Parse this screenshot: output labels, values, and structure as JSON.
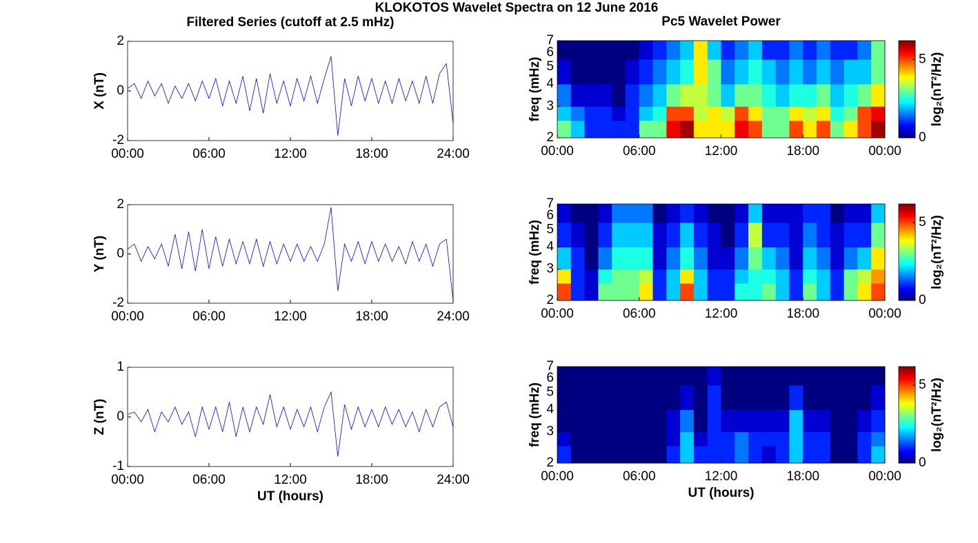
{
  "title": "KLOKOTOS Wavelet Spectra on 12 June 2016",
  "chart_data": [
    {
      "type": "line",
      "title": "Filtered Series (cutoff at 2.5 mHz)",
      "ylabel": "X (nT)",
      "color": "#0000ff",
      "x": [
        0,
        0.5,
        1,
        1.5,
        2,
        2.5,
        3,
        3.5,
        4,
        4.5,
        5,
        5.5,
        6,
        6.5,
        7,
        7.5,
        8,
        8.5,
        9,
        9.5,
        10,
        10.5,
        11,
        11.5,
        12,
        12.5,
        13,
        13.5,
        14,
        14.5,
        15,
        15.5,
        16,
        16.5,
        17,
        17.5,
        18,
        18.5,
        19,
        19.5,
        20,
        20.5,
        21,
        21.5,
        22,
        22.5,
        23,
        23.5,
        24
      ],
      "values": [
        0.1,
        0.3,
        -0.3,
        0.4,
        -0.2,
        0.3,
        -0.5,
        0.2,
        -0.3,
        0.3,
        -0.4,
        0.4,
        -0.3,
        0.5,
        -0.6,
        0.4,
        -0.5,
        0.6,
        -0.8,
        0.5,
        -0.9,
        0.7,
        -0.5,
        0.4,
        -0.6,
        0.5,
        -0.4,
        0.6,
        -0.5,
        0.5,
        1.4,
        -1.8,
        0.5,
        -0.6,
        0.6,
        -0.4,
        0.5,
        -0.5,
        0.4,
        -0.5,
        0.5,
        -0.4,
        0.4,
        -0.5,
        0.6,
        -0.5,
        0.7,
        1.1,
        -1.3
      ],
      "xlim": [
        0,
        24
      ],
      "xticks": [
        {
          "value": 0,
          "label": "00:00"
        },
        {
          "value": 6,
          "label": "06:00"
        },
        {
          "value": 12,
          "label": "12:00"
        },
        {
          "value": 18,
          "label": "18:00"
        },
        {
          "value": 24,
          "label": "24:00"
        }
      ],
      "ylim": [
        -2,
        2
      ],
      "yticks": [
        -2,
        0,
        2
      ]
    },
    {
      "type": "line",
      "ylabel": "Y (nT)",
      "color": "#0000ff",
      "x": [
        0,
        0.5,
        1,
        1.5,
        2,
        2.5,
        3,
        3.5,
        4,
        4.5,
        5,
        5.5,
        6,
        6.5,
        7,
        7.5,
        8,
        8.5,
        9,
        9.5,
        10,
        10.5,
        11,
        11.5,
        12,
        12.5,
        13,
        13.5,
        14,
        14.5,
        15,
        15.5,
        16,
        16.5,
        17,
        17.5,
        18,
        18.5,
        19,
        19.5,
        20,
        20.5,
        21,
        21.5,
        22,
        22.5,
        23,
        23.5,
        24
      ],
      "values": [
        0.2,
        0.4,
        -0.3,
        0.3,
        -0.2,
        0.4,
        -0.5,
        0.8,
        -0.6,
        0.9,
        -0.7,
        1.0,
        -0.6,
        0.7,
        -0.5,
        0.6,
        -0.4,
        0.5,
        -0.4,
        0.6,
        -0.5,
        0.5,
        -0.4,
        0.4,
        -0.3,
        0.4,
        -0.3,
        0.3,
        -0.3,
        0.4,
        1.9,
        -1.5,
        0.4,
        -0.3,
        0.5,
        -0.4,
        0.5,
        -0.3,
        0.4,
        -0.3,
        0.3,
        -0.4,
        0.5,
        -0.3,
        0.4,
        -0.5,
        0.4,
        0.6,
        -1.9
      ],
      "xlim": [
        0,
        24
      ],
      "xticks": [
        {
          "value": 0,
          "label": "00:00"
        },
        {
          "value": 6,
          "label": "06:00"
        },
        {
          "value": 12,
          "label": "12:00"
        },
        {
          "value": 18,
          "label": "18:00"
        },
        {
          "value": 24,
          "label": "24:00"
        }
      ],
      "ylim": [
        -2,
        2
      ],
      "yticks": [
        -2,
        0,
        2
      ]
    },
    {
      "type": "line",
      "ylabel": "Z (nT)",
      "xlabel": "UT (hours)",
      "color": "#0000ff",
      "x": [
        0,
        0.5,
        1,
        1.5,
        2,
        2.5,
        3,
        3.5,
        4,
        4.5,
        5,
        5.5,
        6,
        6.5,
        7,
        7.5,
        8,
        8.5,
        9,
        9.5,
        10,
        10.5,
        11,
        11.5,
        12,
        12.5,
        13,
        13.5,
        14,
        14.5,
        15,
        15.5,
        16,
        16.5,
        17,
        17.5,
        18,
        18.5,
        19,
        19.5,
        20,
        20.5,
        21,
        21.5,
        22,
        22.5,
        23,
        23.5,
        24
      ],
      "values": [
        0.05,
        0.1,
        -0.1,
        0.15,
        -0.3,
        0.1,
        -0.1,
        0.2,
        -0.15,
        0.1,
        -0.4,
        0.2,
        -0.25,
        0.2,
        -0.3,
        0.3,
        -0.4,
        0.2,
        -0.3,
        0.2,
        -0.15,
        0.45,
        -0.2,
        0.2,
        -0.25,
        0.15,
        -0.2,
        0.2,
        -0.3,
        0.2,
        0.5,
        -0.8,
        0.25,
        -0.25,
        0.2,
        -0.2,
        0.15,
        -0.2,
        0.2,
        -0.15,
        0.15,
        -0.2,
        0.1,
        -0.3,
        0.15,
        -0.2,
        0.2,
        0.3,
        -0.2
      ],
      "xlim": [
        0,
        24
      ],
      "xticks": [
        {
          "value": 0,
          "label": "00:00"
        },
        {
          "value": 6,
          "label": "06:00"
        },
        {
          "value": 12,
          "label": "12:00"
        },
        {
          "value": 18,
          "label": "18:00"
        },
        {
          "value": 24,
          "label": "24:00"
        }
      ],
      "ylim": [
        -1,
        1
      ],
      "yticks": [
        -1,
        0,
        1
      ]
    },
    {
      "type": "heatmap",
      "title": "Pc5 Wavelet Power",
      "ylabel": "freq (mHz)",
      "colorbar_label": "log₂(nT²/Hz)",
      "colormap": "jet",
      "log_scale": "y",
      "xbins": [
        0,
        1,
        2,
        3,
        4,
        5,
        6,
        7,
        8,
        9,
        10,
        11,
        12,
        13,
        14,
        15,
        16,
        17,
        18,
        19,
        20,
        21,
        22,
        23,
        24
      ],
      "ybins": [
        2,
        2.5,
        3,
        4,
        5.5,
        7
      ],
      "z": [
        [
          3,
          2,
          1,
          1,
          1,
          1,
          3,
          3,
          5.5,
          6,
          4,
          4,
          4,
          5.5,
          5,
          3,
          3,
          5,
          4,
          5,
          3,
          4,
          5,
          6
        ],
        [
          2,
          1.5,
          1,
          1,
          0.5,
          1,
          2,
          2.5,
          5,
          5,
          3.5,
          4,
          3.5,
          5,
          4,
          3,
          3,
          4,
          3.5,
          4,
          2.5,
          3,
          5,
          5.5
        ],
        [
          1.5,
          0.5,
          0.5,
          0.5,
          0,
          1,
          1.5,
          2,
          3,
          3.5,
          3.5,
          3,
          2,
          3,
          3,
          2.5,
          2,
          2.5,
          2.5,
          3,
          2,
          2.5,
          3,
          4
        ],
        [
          0.5,
          0,
          0,
          0,
          0,
          0.5,
          1,
          1.5,
          2,
          2.5,
          4,
          3,
          1.5,
          2,
          2.5,
          2,
          1.5,
          2,
          1.5,
          2,
          1.5,
          2,
          2,
          3
        ],
        [
          0,
          0,
          0,
          0,
          0,
          0,
          0.5,
          1,
          1.5,
          2,
          4,
          2,
          1,
          1.5,
          2,
          1,
          1,
          1.5,
          1,
          1.5,
          1,
          1,
          1.5,
          3
        ]
      ],
      "xlim": [
        0,
        24
      ],
      "xticks": [
        {
          "value": 0,
          "label": "00:00"
        },
        {
          "value": 6,
          "label": "06:00"
        },
        {
          "value": 12,
          "label": "12:00"
        },
        {
          "value": 18,
          "label": "18:00"
        },
        {
          "value": 24,
          "label": "00:00"
        }
      ],
      "ylim": [
        2,
        7
      ],
      "yticks": [
        2,
        3,
        4,
        5,
        6,
        7
      ],
      "clim": [
        0,
        6.2
      ],
      "cticks": [
        0,
        5
      ]
    },
    {
      "type": "heatmap",
      "ylabel": "freq (mHz)",
      "colorbar_label": "log₂(nT²/Hz)",
      "colormap": "jet",
      "log_scale": "y",
      "xbins": [
        0,
        1,
        2,
        3,
        4,
        5,
        6,
        7,
        8,
        9,
        10,
        11,
        12,
        13,
        14,
        15,
        16,
        17,
        18,
        19,
        20,
        21,
        22,
        23,
        24
      ],
      "ybins": [
        2,
        2.5,
        3,
        4,
        5.5,
        7
      ],
      "z": [
        [
          5,
          1,
          0.5,
          3,
          3,
          3,
          4,
          1,
          2,
          5,
          2,
          1,
          1,
          2.5,
          2.5,
          3,
          2,
          1,
          3,
          2,
          1,
          3,
          4,
          5
        ],
        [
          4,
          1,
          0.5,
          2.5,
          3,
          3,
          3.5,
          1,
          2,
          4,
          2,
          1,
          1,
          2,
          2.5,
          2.5,
          2,
          1,
          2.5,
          2,
          1,
          3,
          3.5,
          4.5
        ],
        [
          2,
          1,
          0,
          1.5,
          2.5,
          2.5,
          2.5,
          0.5,
          1.5,
          2.5,
          1.5,
          0.5,
          0.5,
          1.5,
          3,
          2,
          1.5,
          0.5,
          2,
          1.5,
          0.5,
          1.5,
          2,
          4
        ],
        [
          1,
          0.5,
          0,
          1,
          2,
          2,
          2,
          0.5,
          1,
          2,
          1,
          0.5,
          0,
          1,
          3.5,
          1,
          1,
          0.5,
          1.5,
          1,
          0.5,
          1,
          1,
          3
        ],
        [
          0.5,
          0,
          0,
          0.5,
          1.5,
          1.5,
          1.5,
          0,
          0.5,
          1,
          0.5,
          0,
          0,
          0.5,
          2,
          0.5,
          0.5,
          0.5,
          1,
          1,
          0,
          0.5,
          0.5,
          2
        ]
      ],
      "xlim": [
        0,
        24
      ],
      "xticks": [
        {
          "value": 0,
          "label": "00:00"
        },
        {
          "value": 6,
          "label": "06:00"
        },
        {
          "value": 12,
          "label": "12:00"
        },
        {
          "value": 18,
          "label": "18:00"
        },
        {
          "value": 24,
          "label": "00:00"
        }
      ],
      "ylim": [
        2,
        7
      ],
      "yticks": [
        2,
        3,
        4,
        5,
        6,
        7
      ],
      "clim": [
        0,
        6.2
      ],
      "cticks": [
        0,
        5
      ]
    },
    {
      "type": "heatmap",
      "ylabel": "freq (mHz)",
      "xlabel": "UT (hours)",
      "colorbar_label": "log₂(nT²/Hz)",
      "colormap": "jet",
      "log_scale": "y",
      "xbins": [
        0,
        1,
        2,
        3,
        4,
        5,
        6,
        7,
        8,
        9,
        10,
        11,
        12,
        13,
        14,
        15,
        16,
        17,
        18,
        19,
        20,
        21,
        22,
        23,
        24
      ],
      "ybins": [
        2,
        2.5,
        3,
        4,
        5.5,
        7
      ],
      "z": [
        [
          1,
          0,
          0,
          0,
          0,
          0,
          0,
          0,
          1,
          2,
          1,
          1,
          1,
          1.5,
          1,
          0.5,
          1,
          2,
          1,
          1,
          0,
          0,
          1,
          2
        ],
        [
          0.5,
          0,
          0,
          0,
          0,
          0,
          0,
          0,
          0.5,
          2,
          0.5,
          1,
          1,
          1.5,
          1,
          1,
          1,
          2,
          1,
          1,
          0,
          0,
          1,
          1.5
        ],
        [
          0,
          0,
          0,
          0,
          0,
          0,
          0,
          0,
          0.5,
          1.5,
          0,
          1,
          0.5,
          0.5,
          0.5,
          0.5,
          0.5,
          2,
          0.5,
          0.5,
          0,
          0,
          0.5,
          1
        ],
        [
          0,
          0,
          0,
          0,
          0,
          0,
          0,
          0,
          0,
          0.5,
          0,
          1,
          0,
          0,
          0,
          0,
          0,
          1,
          0,
          0,
          0,
          0,
          0,
          0.5
        ],
        [
          0,
          0,
          0,
          0,
          0,
          0,
          0,
          0,
          0,
          0,
          0,
          0.5,
          0,
          0,
          0,
          0,
          0,
          0,
          0,
          0,
          0,
          0,
          0,
          0
        ]
      ],
      "xlim": [
        0,
        24
      ],
      "xticks": [
        {
          "value": 0,
          "label": "00:00"
        },
        {
          "value": 6,
          "label": "06:00"
        },
        {
          "value": 12,
          "label": "12:00"
        },
        {
          "value": 18,
          "label": "18:00"
        },
        {
          "value": 24,
          "label": "00:00"
        }
      ],
      "ylim": [
        2,
        7
      ],
      "yticks": [
        2,
        3,
        4,
        5,
        6,
        7
      ],
      "clim": [
        0,
        6.2
      ],
      "cticks": [
        0,
        5
      ]
    }
  ]
}
